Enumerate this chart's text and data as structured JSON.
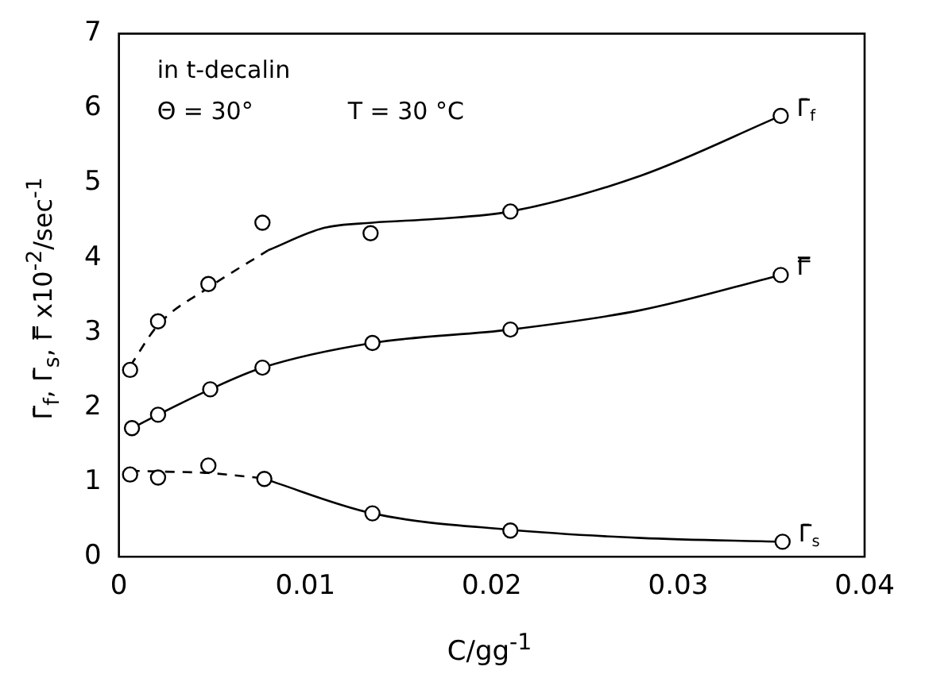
{
  "chart_data": {
    "type": "scatter",
    "xlabel": "C/gg$^{-1}$",
    "ylabel": "Γ̄$_{f}$, Γ̄$_{s}$, Γ̿ x10$^{-2}$/sec$^{-1}$",
    "annotations": [
      "in t-decalin",
      "Θ = 30°",
      "T = 30 °C"
    ],
    "xlim": [
      0,
      0.04
    ],
    "xticks": [
      0,
      0.01,
      0.02,
      0.03,
      0.04
    ],
    "ylim": [
      0,
      7
    ],
    "yticks": [
      0,
      1,
      2,
      3,
      4,
      5,
      6,
      7
    ],
    "grid": false,
    "legend": false,
    "marker": "circle",
    "series": [
      {
        "name": "Γ̄$_{f}$",
        "type": "scatter",
        "color": "#000000",
        "x": [
          0.0006,
          0.0021,
          0.0048,
          0.0077,
          0.0135,
          0.021,
          0.0355
        ],
        "values": [
          2.5,
          3.15,
          3.65,
          4.47,
          4.33,
          4.62,
          5.9
        ]
      },
      {
        "name": "Γ̿",
        "type": "scatter",
        "color": "#000000",
        "x": [
          0.0007,
          0.0021,
          0.0049,
          0.0077,
          0.0136,
          0.021,
          0.0355
        ],
        "values": [
          1.72,
          1.9,
          2.24,
          2.53,
          2.86,
          3.04,
          3.77
        ]
      },
      {
        "name": "Γ̄$_{s}$",
        "type": "scatter",
        "color": "#000000",
        "x": [
          0.0006,
          0.0021,
          0.0048,
          0.0078,
          0.0136,
          0.021,
          0.0356
        ],
        "values": [
          1.1,
          1.06,
          1.22,
          1.04,
          0.58,
          0.35,
          0.2
        ]
      },
      {
        "type": "line",
        "line_style": "dashed",
        "marker": "none",
        "color": "#000000",
        "x": [
          0.0006,
          0.0021,
          0.0048,
          0.008
        ],
        "values": [
          2.55,
          3.1,
          3.6,
          4.1
        ]
      },
      {
        "type": "line",
        "line_style": "solid",
        "marker": "none",
        "color": "#000000",
        "x": [
          0.008,
          0.011,
          0.0136,
          0.017,
          0.021,
          0.028,
          0.0355
        ],
        "values": [
          4.1,
          4.4,
          4.47,
          4.52,
          4.62,
          5.1,
          5.9
        ]
      },
      {
        "type": "line",
        "line_style": "solid",
        "marker": "none",
        "color": "#000000",
        "x": [
          0.0007,
          0.0021,
          0.0049,
          0.0077,
          0.0136,
          0.021,
          0.028,
          0.0355
        ],
        "values": [
          1.72,
          1.9,
          2.24,
          2.53,
          2.86,
          3.04,
          3.3,
          3.77
        ]
      },
      {
        "type": "line",
        "line_style": "dashed",
        "marker": "none",
        "color": "#000000",
        "x": [
          0.0006,
          0.0021,
          0.0048,
          0.0077
        ],
        "values": [
          1.15,
          1.14,
          1.12,
          1.05
        ]
      },
      {
        "type": "line",
        "line_style": "solid",
        "marker": "none",
        "color": "#000000",
        "x": [
          0.0077,
          0.0136,
          0.021,
          0.028,
          0.0355
        ],
        "values": [
          1.05,
          0.58,
          0.36,
          0.25,
          0.2
        ]
      }
    ]
  }
}
